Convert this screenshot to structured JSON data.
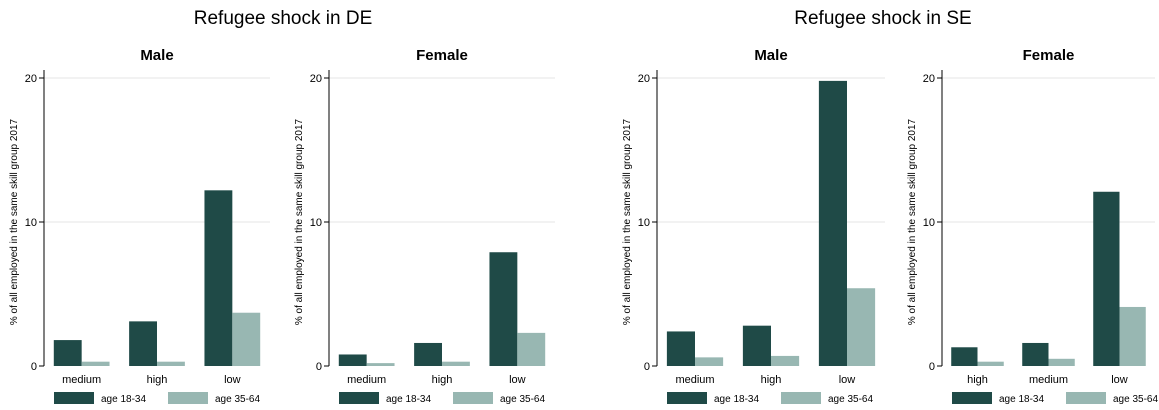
{
  "figures": [
    {
      "title": "Refugee shock in DE"
    },
    {
      "title": "Refugee shock in SE"
    }
  ],
  "colors": {
    "age_18_34": "#1f4a47",
    "age_35_64": "#98b7b2",
    "axis": "#000000",
    "grid": "#e6e6e6"
  },
  "chart_data": [
    {
      "type": "bar",
      "figure": "Refugee shock in DE",
      "title": "Male",
      "ylabel": "% of all employed in the same skill group 2017",
      "ylim": [
        0,
        20
      ],
      "yticks": [
        0,
        10,
        20
      ],
      "categories": [
        "medium",
        "high",
        "low"
      ],
      "series": [
        {
          "name": "age 18-34",
          "values": [
            1.8,
            3.1,
            12.2
          ]
        },
        {
          "name": "age 35-64",
          "values": [
            0.3,
            0.3,
            3.7
          ]
        }
      ],
      "legend": "bottom",
      "grid": true
    },
    {
      "type": "bar",
      "figure": "Refugee shock in DE",
      "title": "Female",
      "ylabel": "% of all employed in the same skill group 2017",
      "ylim": [
        0,
        20
      ],
      "yticks": [
        0,
        10,
        20
      ],
      "categories": [
        "medium",
        "high",
        "low"
      ],
      "series": [
        {
          "name": "age 18-34",
          "values": [
            0.8,
            1.6,
            7.9
          ]
        },
        {
          "name": "age 35-64",
          "values": [
            0.2,
            0.3,
            2.3
          ]
        }
      ],
      "legend": "bottom",
      "grid": true
    },
    {
      "type": "bar",
      "figure": "Refugee shock in SE",
      "title": "Male",
      "ylabel": "% of all employed in the same skill group 2017",
      "ylim": [
        0,
        20
      ],
      "yticks": [
        0,
        10,
        20
      ],
      "categories": [
        "medium",
        "high",
        "low"
      ],
      "series": [
        {
          "name": "age 18-34",
          "values": [
            2.4,
            2.8,
            19.8
          ]
        },
        {
          "name": "age 35-64",
          "values": [
            0.6,
            0.7,
            5.4
          ]
        }
      ],
      "legend": "bottom",
      "grid": true
    },
    {
      "type": "bar",
      "figure": "Refugee shock in SE",
      "title": "Female",
      "ylabel": "% of all employed in the same skill group 2017",
      "ylim": [
        0,
        20
      ],
      "yticks": [
        0,
        10,
        20
      ],
      "categories": [
        "high",
        "medium",
        "low"
      ],
      "series": [
        {
          "name": "age 18-34",
          "values": [
            1.3,
            1.6,
            12.1
          ]
        },
        {
          "name": "age 35-64",
          "values": [
            0.3,
            0.5,
            4.1
          ]
        }
      ],
      "legend": "bottom",
      "grid": true
    }
  ]
}
